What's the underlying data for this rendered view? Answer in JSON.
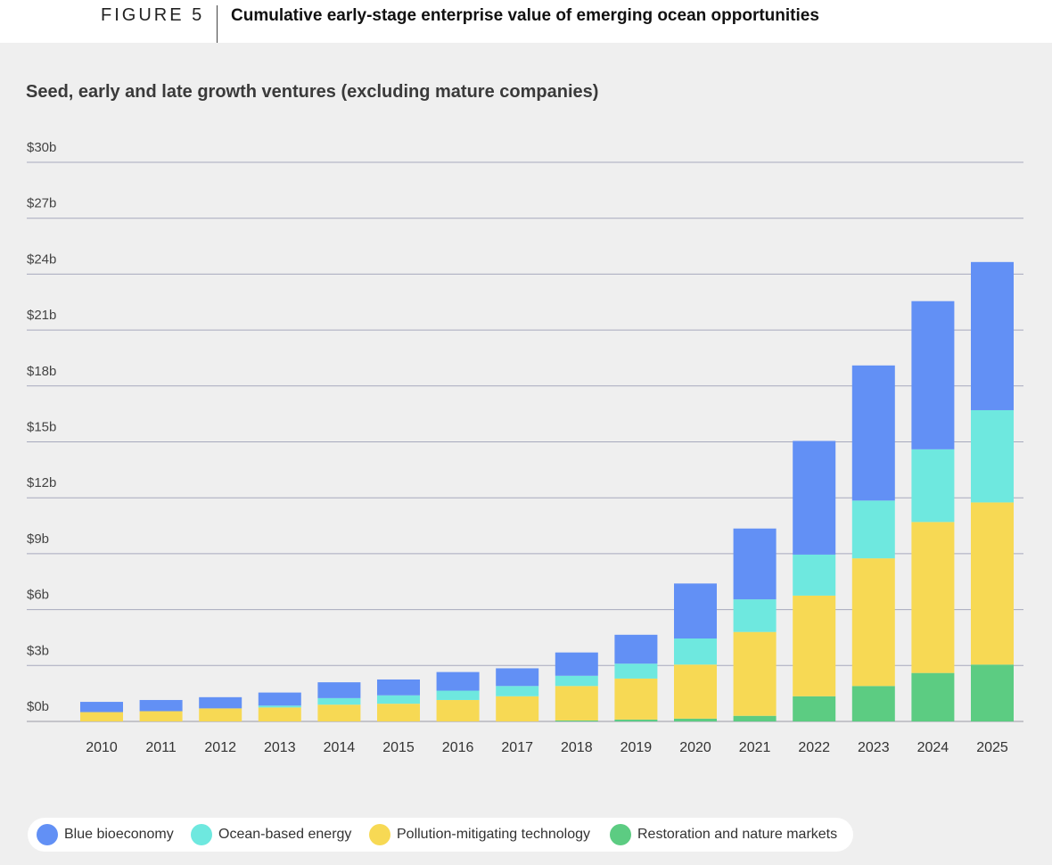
{
  "figure": {
    "label": "FIGURE 5",
    "title": "Cumulative early-stage enterprise value of emerging ocean opportunities"
  },
  "chart_data": {
    "type": "bar",
    "stacked": true,
    "subtitle": "Seed, early and late growth ventures (excluding mature companies)",
    "categories": [
      "2010",
      "2011",
      "2012",
      "2013",
      "2014",
      "2015",
      "2016",
      "2017",
      "2018",
      "2019",
      "2020",
      "2021",
      "2022",
      "2023",
      "2024",
      "2025"
    ],
    "ylim": [
      0,
      30
    ],
    "ytick_values": [
      0,
      3,
      6,
      9,
      12,
      15,
      18,
      21,
      24,
      27,
      30
    ],
    "ytick_labels": [
      "$0b",
      "$3b",
      "$6b",
      "$9b",
      "$12b",
      "$15b",
      "$18b",
      "$21b",
      "$24b",
      "$27b",
      "$30b"
    ],
    "grid": true,
    "legend_position": "bottom-left",
    "series": [
      {
        "name": "Restoration and nature markets",
        "color": "#5ccc82",
        "values": [
          0,
          0,
          0,
          0,
          0,
          0,
          0,
          0,
          0.05,
          0.1,
          0.15,
          0.3,
          1.35,
          1.9,
          2.6,
          3.05
        ]
      },
      {
        "name": "Pollution-mitigating technology",
        "color": "#f7d954",
        "values": [
          0.5,
          0.55,
          0.7,
          0.75,
          0.9,
          0.95,
          1.15,
          1.35,
          1.85,
          2.2,
          2.9,
          4.5,
          5.4,
          6.85,
          8.1,
          8.7
        ]
      },
      {
        "name": "Ocean-based energy",
        "color": "#6ee8df",
        "values": [
          0,
          0,
          0,
          0.1,
          0.35,
          0.45,
          0.5,
          0.55,
          0.55,
          0.8,
          1.4,
          1.75,
          2.2,
          3.1,
          3.9,
          4.95
        ]
      },
      {
        "name": "Blue bioeconomy",
        "color": "#6290f5",
        "values": [
          0.55,
          0.6,
          0.6,
          0.7,
          0.85,
          0.85,
          1.0,
          0.95,
          1.25,
          1.55,
          2.95,
          3.8,
          6.1,
          7.25,
          7.95,
          7.95
        ]
      }
    ]
  },
  "legend": [
    {
      "label": "Blue bioeconomy",
      "color": "#6290f5"
    },
    {
      "label": "Ocean-based energy",
      "color": "#6ee8df"
    },
    {
      "label": "Pollution-mitigating technology",
      "color": "#f7d954"
    },
    {
      "label": "Restoration and nature markets",
      "color": "#5ccc82"
    }
  ]
}
